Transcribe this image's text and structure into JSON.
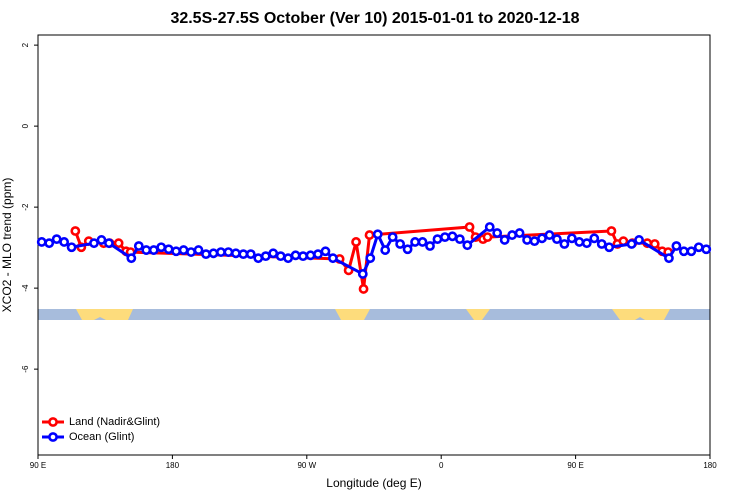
{
  "chart_data": {
    "type": "line",
    "title": "32.5S-27.5S October (Ver 10)   2015-01-01 to 2020-12-18",
    "x_label": "Longitude (deg E)",
    "y_label": "XCO2 - MLO trend (ppm)",
    "xlim": [
      90,
      540
    ],
    "ylim": [
      -8.12,
      2.25
    ],
    "xticks": [
      {
        "value": 90,
        "label": "90 E"
      },
      180,
      {
        "value": 270,
        "label": "90 W"
      },
      {
        "value": 360,
        "label": "0"
      },
      {
        "value": 450,
        "label": "90 E"
      },
      {
        "value": 540,
        "label": "180"
      }
    ],
    "yticks": [
      2,
      0,
      -2,
      -4,
      -6
    ],
    "legend": "bottom-left",
    "series": [
      {
        "name": "Land (Nadir&Glint)",
        "color": "#ff0000",
        "x": [
          115,
          119,
          124,
          134,
          138,
          144,
          149,
          152,
          292,
          298,
          303,
          308,
          312,
          379,
          383,
          388,
          391,
          474,
          478,
          482,
          488,
          498,
          503,
          508,
          512
        ],
        "values": [
          -2.59,
          -2.99,
          -2.84,
          -2.89,
          -2.89,
          -2.89,
          -3.09,
          -3.11,
          -3.28,
          -3.56,
          -2.86,
          -4.02,
          -2.69,
          -2.49,
          -2.74,
          -2.79,
          -2.74,
          -2.59,
          -2.91,
          -2.84,
          -2.89,
          -2.89,
          -2.91,
          -3.09,
          -3.11
        ]
      },
      {
        "name": "Ocean (Glint)",
        "color": "#0000ff",
        "x": [
          92.5,
          97.5,
          102.5,
          107.5,
          112.5,
          127.5,
          132.5,
          137.5,
          152.5,
          157.5,
          162.5,
          167.5,
          172.5,
          177.5,
          182.5,
          187.5,
          192.5,
          197.5,
          202.5,
          207.5,
          212.5,
          217.5,
          222.5,
          227.5,
          232.5,
          237.5,
          242.5,
          247.5,
          252.5,
          257.5,
          262.5,
          267.5,
          272.5,
          277.5,
          282.5,
          287.5,
          307.5,
          312.5,
          317.5,
          322.5,
          327.5,
          332.5,
          337.5,
          342.5,
          347.5,
          352.5,
          357.5,
          362.5,
          367.5,
          372.5,
          377.5,
          392.5,
          397.5,
          402.5,
          407.5,
          412.5,
          417.5,
          422.5,
          427.5,
          432.5,
          437.5,
          442.5,
          447.5,
          452.5,
          457.5,
          462.5,
          467.5,
          472.5,
          487.5,
          492.5,
          512.5,
          517.5,
          522.5,
          527.5,
          532.5,
          537.5
        ],
        "values": [
          -2.86,
          -2.89,
          -2.79,
          -2.86,
          -2.99,
          -2.89,
          -2.81,
          -2.89,
          -3.26,
          -2.96,
          -3.06,
          -3.06,
          -2.99,
          -3.04,
          -3.09,
          -3.06,
          -3.11,
          -3.06,
          -3.16,
          -3.14,
          -3.11,
          -3.11,
          -3.14,
          -3.16,
          -3.16,
          -3.26,
          -3.21,
          -3.14,
          -3.21,
          -3.26,
          -3.19,
          -3.21,
          -3.19,
          -3.16,
          -3.09,
          -3.26,
          -3.65,
          -3.26,
          -2.67,
          -3.06,
          -2.74,
          -2.91,
          -3.04,
          -2.86,
          -2.86,
          -2.96,
          -2.79,
          -2.74,
          -2.72,
          -2.79,
          -2.94,
          -2.49,
          -2.64,
          -2.81,
          -2.69,
          -2.64,
          -2.81,
          -2.84,
          -2.77,
          -2.69,
          -2.79,
          -2.91,
          -2.77,
          -2.86,
          -2.89,
          -2.77,
          -2.91,
          -2.99,
          -2.91,
          -2.81,
          -3.26,
          -2.96,
          -3.09,
          -3.09,
          -2.99,
          -3.04
        ]
      }
    ]
  }
}
